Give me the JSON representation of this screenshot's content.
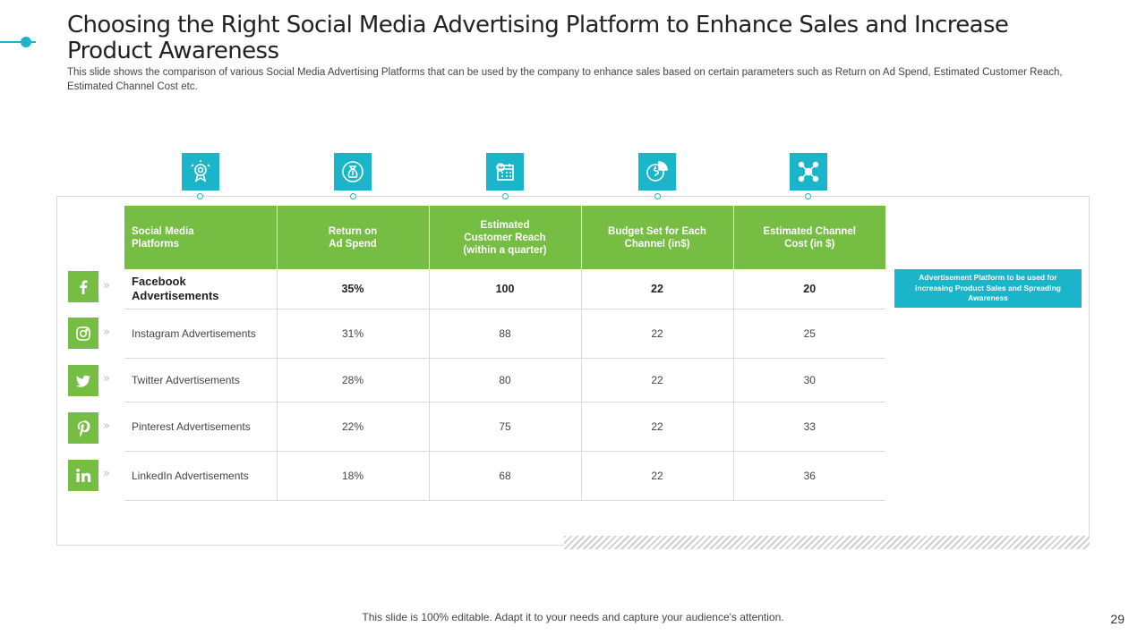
{
  "slide": {
    "title": "Choosing the Right Social Media Advertising Platform to Enhance Sales and Increase Product Awareness",
    "subtitle": "This slide shows the comparison of various Social Media  Advertising Platforms that can be used by the company to enhance sales based on certain parameters such as Return on Ad Spend, Estimated Customer Reach, Estimated Channel Cost etc.",
    "footer": "This slide is 100% editable. Adapt it to your needs and capture your audience's attention.",
    "page_number": "29"
  },
  "colors": {
    "accent": "#1ab5c9",
    "green": "#76bd43"
  },
  "top_icons": [
    "target-award-icon",
    "money-bag-icon",
    "calendar-clock-icon",
    "dollar-pie-icon",
    "network-people-icon"
  ],
  "table": {
    "headers": [
      "Social Media Platforms",
      "Return on Ad Spend",
      "Estimated Customer Reach (within a quarter)",
      "Budget Set for Each Channel (in$)",
      "Estimated Channel Cost (in $)"
    ],
    "rows": [
      {
        "icon": "facebook-icon",
        "platform": "Facebook Advertisements",
        "roas": "35%",
        "reach": "100",
        "budget": "22",
        "cost": "20"
      },
      {
        "icon": "instagram-icon",
        "platform": "Instagram Advertisements",
        "roas": "31%",
        "reach": "88",
        "budget": "22",
        "cost": "25"
      },
      {
        "icon": "twitter-icon",
        "platform": "Twitter Advertisements",
        "roas": "28%",
        "reach": "80",
        "budget": "22",
        "cost": "30"
      },
      {
        "icon": "pinterest-icon",
        "platform": "Pinterest Advertisements",
        "roas": "22%",
        "reach": "75",
        "budget": "22",
        "cost": "33"
      },
      {
        "icon": "linkedin-icon",
        "platform": "LinkedIn Advertisements",
        "roas": "18%",
        "reach": "68",
        "budget": "22",
        "cost": "36"
      }
    ]
  },
  "callout": "Advertisement Platform to be used for increasing Product Sales and Spreading Awareness"
}
